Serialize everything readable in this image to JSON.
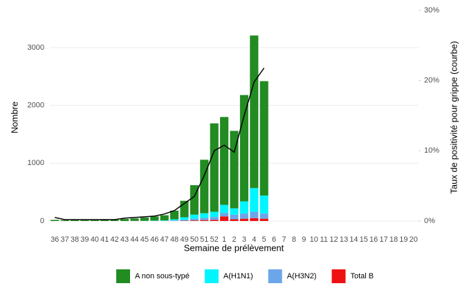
{
  "chart_data": {
    "type": "bar",
    "stacked": true,
    "x_label": "Semaine de prélèvement",
    "y_label": "Nombre",
    "y2_label": "Taux de positivité pour grippe (courbe)",
    "categories": [
      "36",
      "37",
      "38",
      "39",
      "40",
      "41",
      "42",
      "43",
      "44",
      "45",
      "46",
      "47",
      "48",
      "49",
      "50",
      "51",
      "52",
      "1",
      "2",
      "3",
      "4",
      "5",
      "6",
      "7",
      "8",
      "9",
      "10",
      "11",
      "12",
      "13",
      "14",
      "15",
      "16",
      "17",
      "18",
      "19",
      "20"
    ],
    "series": [
      {
        "name": "A non sous-typé",
        "color": "#228b22",
        "values": [
          20,
          15,
          15,
          15,
          15,
          20,
          20,
          35,
          43,
          57,
          73,
          89,
          150,
          285,
          510,
          925,
          1530,
          1520,
          1340,
          1840,
          2640,
          1980,
          null,
          null,
          null,
          null,
          null,
          null,
          null,
          null,
          null,
          null,
          null,
          null,
          null,
          null,
          null
        ]
      },
      {
        "name": "A(H1N1)",
        "color": "#00f5ff",
        "values": [
          0,
          0,
          0,
          0,
          0,
          0,
          0,
          0,
          2,
          3,
          5,
          8,
          20,
          45,
          70,
          80,
          90,
          140,
          110,
          210,
          410,
          310,
          null,
          null,
          null,
          null,
          null,
          null,
          null,
          null,
          null,
          null,
          null,
          null,
          null,
          null,
          null
        ]
      },
      {
        "name": "A(H3N2)",
        "color": "#6ca6e8",
        "values": [
          0,
          0,
          0,
          0,
          0,
          0,
          0,
          0,
          0,
          0,
          2,
          3,
          8,
          15,
          30,
          40,
          50,
          60,
          80,
          90,
          110,
          90,
          null,
          null,
          null,
          null,
          null,
          null,
          null,
          null,
          null,
          null,
          null,
          null,
          null,
          null,
          null
        ]
      },
      {
        "name": "Total B",
        "color": "#ee1111",
        "values": [
          0,
          0,
          0,
          0,
          0,
          0,
          0,
          0,
          0,
          0,
          0,
          0,
          2,
          5,
          10,
          15,
          20,
          80,
          30,
          40,
          50,
          40,
          null,
          null,
          null,
          null,
          null,
          null,
          null,
          null,
          null,
          null,
          null,
          null,
          null,
          null,
          null
        ]
      }
    ],
    "line": {
      "axis": "y2",
      "color": "#000000",
      "values": [
        0.5,
        0.2,
        0.2,
        0.2,
        0.2,
        0.2,
        0.2,
        0.4,
        0.5,
        0.6,
        0.7,
        1.0,
        1.5,
        2.5,
        3.5,
        6.5,
        10,
        10.8,
        9.8,
        15,
        19.8,
        21.8,
        null,
        null,
        null,
        null,
        null,
        null,
        null,
        null,
        null,
        null,
        null,
        null,
        null,
        null,
        null
      ]
    },
    "ylim": [
      0,
      3645
    ],
    "yticks": [
      0,
      1000,
      2000,
      3000
    ],
    "y2lim": [
      0,
      30
    ],
    "y2ticks": [
      {
        "value": 0,
        "label": "0%"
      },
      {
        "value": 10,
        "label": "10%"
      },
      {
        "value": 20,
        "label": "20%"
      },
      {
        "value": 30,
        "label": "30%"
      }
    ],
    "grid": true,
    "legend": "bottom"
  }
}
